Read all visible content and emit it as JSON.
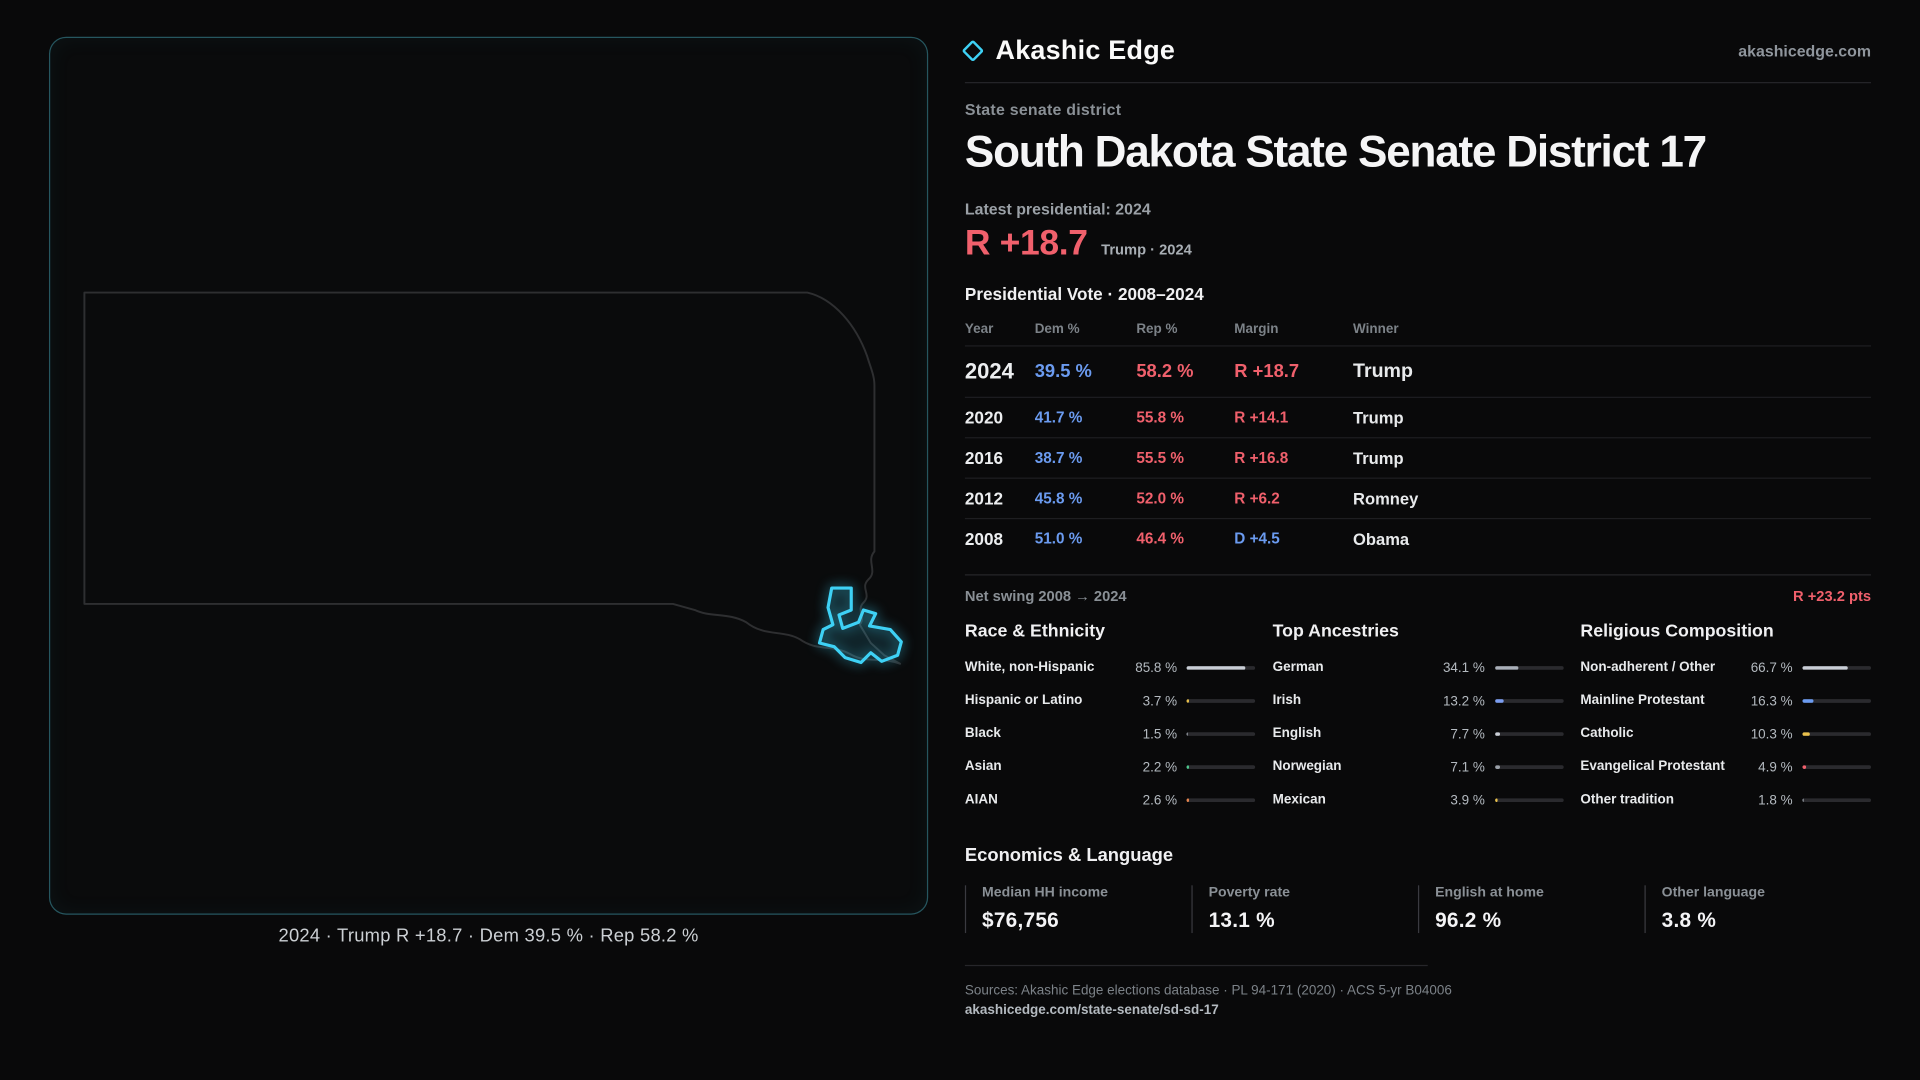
{
  "colors": {
    "accent": "#3ed1f5",
    "dem": "#6b9bf0",
    "rep": "#f0606c"
  },
  "map": {
    "caption": "2024 · Trump R +18.7 · Dem 39.5 % · Rep 58.2 %"
  },
  "header": {
    "brand": "Akashic Edge",
    "site": "akashicedge.com"
  },
  "page": {
    "eyebrow": "State senate district",
    "title": "South Dakota State Senate District 17",
    "latest_label": "Latest presidential: 2024",
    "latest_margin": "R +18.7",
    "latest_sub": "Trump · 2024"
  },
  "vote_table": {
    "title": "Presidential Vote · 2008–2024",
    "headers": [
      "Year",
      "Dem %",
      "Rep %",
      "Margin",
      "Winner"
    ],
    "rows": [
      {
        "year": "2024",
        "dem": "39.5 %",
        "rep": "58.2 %",
        "margin": "R +18.7",
        "winner": "Trump"
      },
      {
        "year": "2020",
        "dem": "41.7 %",
        "rep": "55.8 %",
        "margin": "R +14.1",
        "winner": "Trump"
      },
      {
        "year": "2016",
        "dem": "38.7 %",
        "rep": "55.5 %",
        "margin": "R +16.8",
        "winner": "Trump"
      },
      {
        "year": "2012",
        "dem": "45.8 %",
        "rep": "52.0 %",
        "margin": "R +6.2",
        "winner": "Romney"
      },
      {
        "year": "2008",
        "dem": "51.0 %",
        "rep": "46.4 %",
        "margin": "D +4.5",
        "winner": "Obama"
      }
    ]
  },
  "swing": {
    "label": "Net swing 2008 → 2024",
    "value": "R +23.2 pts"
  },
  "demographics": [
    {
      "title": "Race & Ethnicity",
      "rows": [
        {
          "label": "White, non-Hispanic",
          "value": "85.8 %",
          "pct": 85.8,
          "color": "#c9ced6"
        },
        {
          "label": "Hispanic or Latino",
          "value": "3.7 %",
          "pct": 3.7,
          "color": "#e9c04b"
        },
        {
          "label": "Black",
          "value": "1.5 %",
          "pct": 1.5,
          "color": "#9aa0a8"
        },
        {
          "label": "Asian",
          "value": "2.2 %",
          "pct": 2.2,
          "color": "#4ec98e"
        },
        {
          "label": "AIAN",
          "value": "2.6 %",
          "pct": 2.6,
          "color": "#e8854e"
        }
      ]
    },
    {
      "title": "Top Ancestries",
      "rows": [
        {
          "label": "German",
          "value": "34.1 %",
          "pct": 34.1,
          "color": "#a9afb8"
        },
        {
          "label": "Irish",
          "value": "13.2 %",
          "pct": 13.2,
          "color": "#7b9df0"
        },
        {
          "label": "English",
          "value": "7.7 %",
          "pct": 7.7,
          "color": "#c9ced6"
        },
        {
          "label": "Norwegian",
          "value": "7.1 %",
          "pct": 7.1,
          "color": "#9aa0a8"
        },
        {
          "label": "Mexican",
          "value": "3.9 %",
          "pct": 3.9,
          "color": "#e9c04b"
        }
      ]
    },
    {
      "title": "Religious Composition",
      "rows": [
        {
          "label": "Non-adherent / Other",
          "value": "66.7 %",
          "pct": 66.7,
          "color": "#c9ced6"
        },
        {
          "label": "Mainline Protestant",
          "value": "16.3 %",
          "pct": 16.3,
          "color": "#6b9bf0"
        },
        {
          "label": "Catholic",
          "value": "10.3 %",
          "pct": 10.3,
          "color": "#e9c04b"
        },
        {
          "label": "Evangelical Protestant",
          "value": "4.9 %",
          "pct": 4.9,
          "color": "#f0606c"
        },
        {
          "label": "Other tradition",
          "value": "1.8 %",
          "pct": 1.8,
          "color": "#9aa0a8"
        }
      ]
    }
  ],
  "economics": {
    "title": "Economics & Language",
    "stats": [
      {
        "label": "Median HH income",
        "value": "$76,756"
      },
      {
        "label": "Poverty rate",
        "value": "13.1 %"
      },
      {
        "label": "English at home",
        "value": "96.2 %"
      },
      {
        "label": "Other language",
        "value": "3.8 %"
      }
    ]
  },
  "footer": {
    "sources": "Sources: Akashic Edge elections database · PL 94-171 (2020) · ACS 5-yr B04006",
    "permalink": "akashicedge.com/state-senate/sd-sd-17"
  }
}
